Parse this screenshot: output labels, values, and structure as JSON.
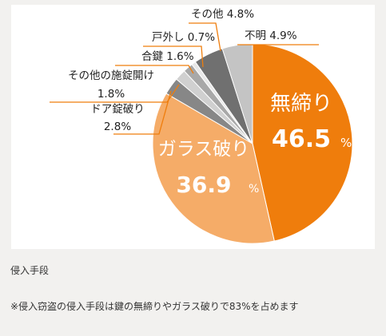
{
  "chart_data": {
    "type": "pie",
    "start_angle_deg": 0,
    "direction": "clockwise",
    "slices": [
      {
        "label": "無締り",
        "value": 46.5,
        "display": "46.5",
        "unit": "%",
        "color": "#ef7d0c",
        "label_mode": "inside"
      },
      {
        "label": "ガラス破り",
        "value": 36.9,
        "display": "36.9",
        "unit": "%",
        "color": "#f5ac68",
        "label_mode": "inside"
      },
      {
        "label": "ドア錠破り",
        "value": 2.8,
        "display": "2.8%",
        "color": "#878787",
        "label_mode": "callout"
      },
      {
        "label": "その他の施錠開け",
        "value": 1.8,
        "display": "1.8%",
        "color": "#d0d0d0",
        "label_mode": "callout"
      },
      {
        "label": "合鍵",
        "value": 1.6,
        "display": "1.6%",
        "color": "#a8a8a8",
        "label_mode": "callout"
      },
      {
        "label": "戸外し",
        "value": 0.7,
        "display": "0.7%",
        "color": "#e8e8e8",
        "label_mode": "callout"
      },
      {
        "label": "その他",
        "value": 4.8,
        "display": "4.8%",
        "color": "#707070",
        "label_mode": "callout"
      },
      {
        "label": "不明",
        "value": 4.9,
        "display": "4.9%",
        "color": "#c4c4c4",
        "label_mode": "callout"
      }
    ],
    "leader_color": "#ef7d0c"
  },
  "caption": "侵入手段",
  "note": "※侵入窃盗の侵入手段は鍵の無締りやガラス破りで83%を占めます"
}
